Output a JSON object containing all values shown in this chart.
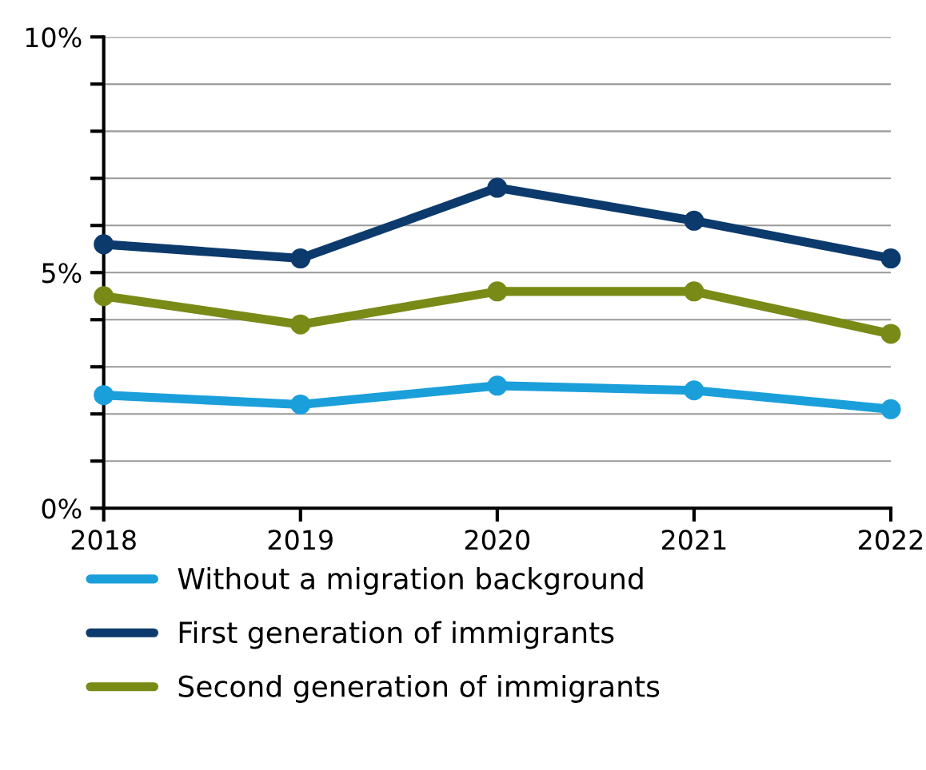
{
  "chart_data": {
    "type": "line",
    "x": [
      2018,
      2019,
      2020,
      2021,
      2022
    ],
    "xlim": [
      2018,
      2022
    ],
    "xticks": [
      2018,
      2019,
      2020,
      2021,
      2022
    ],
    "ylim": [
      0,
      10
    ],
    "yticks": [
      {
        "value": 0,
        "label": "0%"
      },
      {
        "value": 1,
        "label": null
      },
      {
        "value": 2,
        "label": null
      },
      {
        "value": 3,
        "label": null
      },
      {
        "value": 4,
        "label": null
      },
      {
        "value": 5,
        "label": "5%"
      },
      {
        "value": 6,
        "label": null
      },
      {
        "value": 7,
        "label": null
      },
      {
        "value": 8,
        "label": null
      },
      {
        "value": 9,
        "label": null
      },
      {
        "value": 10,
        "label": "10%"
      }
    ],
    "grid": "y",
    "legend": "bottom",
    "marker": "circle",
    "line_style": "solid",
    "series": [
      {
        "name": "Without a migration background",
        "color": "#1a9fdb",
        "values": [
          2.4,
          2.2,
          2.6,
          2.5,
          2.1
        ]
      },
      {
        "name": "First generation of immigrants",
        "color": "#0c3a6c",
        "values": [
          5.6,
          5.3,
          6.8,
          6.1,
          5.3
        ]
      },
      {
        "name": "Second generation of immigrants",
        "color": "#7a8a17",
        "values": [
          4.5,
          3.9,
          4.6,
          4.6,
          3.7
        ]
      }
    ]
  }
}
